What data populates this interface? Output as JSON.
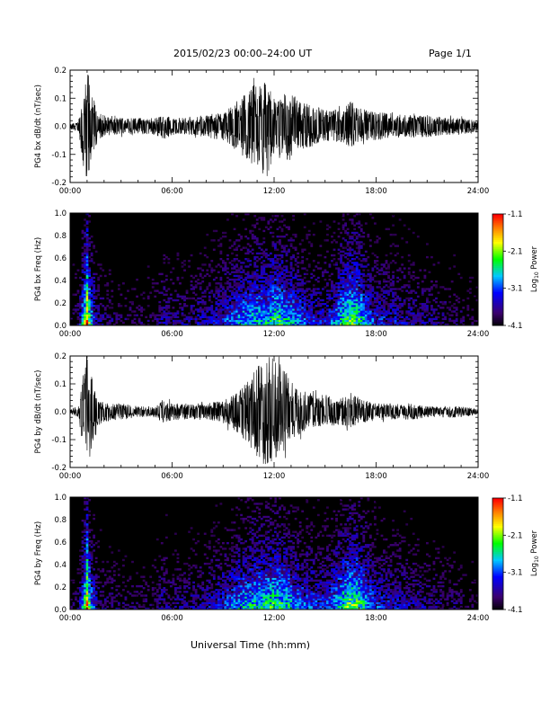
{
  "header": {
    "title": "2015/02/23  00:00–24:00 UT",
    "page": "Page 1/1"
  },
  "x_axis_title": "Universal Time (hh:mm)",
  "chart_data": [
    {
      "type": "line",
      "ylabel": "PG4 bx dB/dt (nT/sec)",
      "xlim": [
        0,
        24
      ],
      "ylim": [
        -0.2,
        0.2
      ],
      "x_tick_labels": [
        "00:00",
        "06:00",
        "12:00",
        "18:00",
        "24:00"
      ],
      "y_tick_labels": [
        "-0.2",
        "-0.1",
        "0.0",
        "0.1",
        "0.2"
      ],
      "y_ticks": [
        -0.2,
        -0.1,
        0.0,
        0.1,
        0.2
      ],
      "envelope": {
        "t": [
          0,
          0.5,
          0.8,
          1.0,
          1.1,
          1.3,
          1.6,
          2.0,
          2.5,
          3,
          4,
          5,
          5.5,
          6,
          7,
          8,
          9,
          9.5,
          10,
          10.5,
          11,
          11.5,
          12,
          12.5,
          13,
          13.5,
          14,
          15,
          16,
          16.5,
          17,
          17.5,
          18,
          19,
          20,
          21,
          22,
          23,
          24
        ],
        "upper": [
          0.01,
          0.02,
          0.12,
          0.19,
          0.2,
          0.12,
          0.05,
          0.04,
          0.03,
          0.03,
          0.03,
          0.03,
          0.04,
          0.03,
          0.03,
          0.04,
          0.05,
          0.07,
          0.09,
          0.14,
          0.15,
          0.16,
          0.1,
          0.12,
          0.12,
          0.09,
          0.08,
          0.06,
          0.06,
          0.09,
          0.07,
          0.06,
          0.05,
          0.05,
          0.04,
          0.04,
          0.03,
          0.03,
          0.02
        ],
        "lower": [
          -0.01,
          -0.02,
          -0.15,
          -0.2,
          -0.2,
          -0.1,
          -0.05,
          -0.04,
          -0.03,
          -0.03,
          -0.03,
          -0.03,
          -0.05,
          -0.03,
          -0.03,
          -0.04,
          -0.05,
          -0.07,
          -0.1,
          -0.12,
          -0.16,
          -0.2,
          -0.1,
          -0.12,
          -0.12,
          -0.08,
          -0.08,
          -0.05,
          -0.06,
          -0.08,
          -0.06,
          -0.05,
          -0.05,
          -0.04,
          -0.04,
          -0.04,
          -0.03,
          -0.03,
          -0.02
        ]
      }
    },
    {
      "type": "heatmap",
      "ylabel": "PG4 bx Freq (Hz)",
      "xlim": [
        0,
        24
      ],
      "ylim": [
        0,
        1.0
      ],
      "x_tick_labels": [
        "00:00",
        "06:00",
        "12:00",
        "18:00",
        "24:00"
      ],
      "y_tick_labels": [
        "0.0",
        "0.2",
        "0.4",
        "0.6",
        "0.8",
        "1.0"
      ],
      "y_ticks": [
        0,
        0.2,
        0.4,
        0.6,
        0.8,
        1.0
      ],
      "colorbar": {
        "label": "Log10 Power",
        "label_prefix": "Log",
        "label_sub": "10",
        "label_suffix": " Power",
        "range": [
          -4.1,
          -1.1
        ],
        "tick_labels": [
          "-1.1",
          "-2.1",
          "-3.1",
          "-4.1"
        ],
        "ticks": [
          -1.1,
          -2.1,
          -3.1,
          -4.1
        ]
      },
      "activity": {
        "t": [
          0,
          0.5,
          0.9,
          1.0,
          1.2,
          1.6,
          2.0,
          3,
          4,
          5,
          5.5,
          6,
          7,
          8,
          9,
          10,
          10.5,
          11,
          11.5,
          12,
          12.5,
          13,
          13.5,
          14,
          15,
          15.5,
          16,
          16.5,
          17,
          17.5,
          18,
          19,
          20,
          21,
          22,
          23,
          24
        ],
        "level": [
          0.1,
          0.2,
          0.8,
          1.0,
          0.6,
          0.25,
          0.2,
          0.15,
          0.15,
          0.15,
          0.3,
          0.2,
          0.25,
          0.3,
          0.4,
          0.55,
          0.6,
          0.6,
          0.6,
          0.7,
          0.65,
          0.6,
          0.5,
          0.4,
          0.35,
          0.45,
          0.65,
          0.75,
          0.7,
          0.5,
          0.4,
          0.35,
          0.3,
          0.25,
          0.2,
          0.15,
          0.1
        ]
      }
    },
    {
      "type": "line",
      "ylabel": "PG4 by dB/dt (nT/sec)",
      "xlim": [
        0,
        24
      ],
      "ylim": [
        -0.2,
        0.2
      ],
      "x_tick_labels": [
        "00:00",
        "06:00",
        "12:00",
        "18:00",
        "24:00"
      ],
      "y_tick_labels": [
        "-0.2",
        "-0.1",
        "0.0",
        "0.1",
        "0.2"
      ],
      "y_ticks": [
        -0.2,
        -0.1,
        0.0,
        0.1,
        0.2
      ],
      "envelope": {
        "t": [
          0,
          0.5,
          0.8,
          1.0,
          1.1,
          1.3,
          1.6,
          2.0,
          2.5,
          3,
          4,
          5,
          5.5,
          6,
          7,
          8,
          9,
          9.5,
          10,
          10.5,
          11,
          11.5,
          12,
          12.5,
          13,
          13.5,
          14,
          15,
          16,
          16.5,
          17,
          17.5,
          18,
          19,
          20,
          21,
          22,
          23,
          24
        ],
        "upper": [
          0.01,
          0.02,
          0.15,
          0.19,
          0.2,
          0.12,
          0.04,
          0.03,
          0.03,
          0.03,
          0.02,
          0.02,
          0.05,
          0.03,
          0.03,
          0.03,
          0.04,
          0.06,
          0.08,
          0.12,
          0.16,
          0.2,
          0.2,
          0.16,
          0.12,
          0.08,
          0.07,
          0.06,
          0.05,
          0.07,
          0.05,
          0.04,
          0.03,
          0.03,
          0.03,
          0.02,
          0.02,
          0.02,
          0.01
        ],
        "lower": [
          -0.01,
          -0.02,
          -0.15,
          -0.2,
          -0.2,
          -0.12,
          -0.05,
          -0.04,
          -0.03,
          -0.03,
          -0.02,
          -0.02,
          -0.04,
          -0.03,
          -0.03,
          -0.03,
          -0.04,
          -0.06,
          -0.08,
          -0.12,
          -0.16,
          -0.2,
          -0.18,
          -0.15,
          -0.1,
          -0.08,
          -0.06,
          -0.05,
          -0.05,
          -0.06,
          -0.04,
          -0.04,
          -0.03,
          -0.03,
          -0.03,
          -0.02,
          -0.02,
          -0.02,
          -0.01
        ]
      }
    },
    {
      "type": "heatmap",
      "ylabel": "PG4 by Freq (Hz)",
      "xlim": [
        0,
        24
      ],
      "ylim": [
        0,
        1.0
      ],
      "x_tick_labels": [
        "00:00",
        "06:00",
        "12:00",
        "18:00",
        "24:00"
      ],
      "y_tick_labels": [
        "0.0",
        "0.2",
        "0.4",
        "0.6",
        "0.8",
        "1.0"
      ],
      "y_ticks": [
        0,
        0.2,
        0.4,
        0.6,
        0.8,
        1.0
      ],
      "colorbar": {
        "label": "Log10 Power",
        "label_prefix": "Log",
        "label_sub": "10",
        "label_suffix": " Power",
        "range": [
          -4.1,
          -1.1
        ],
        "tick_labels": [
          "-1.1",
          "-2.1",
          "-3.1",
          "-4.1"
        ],
        "ticks": [
          -1.1,
          -2.1,
          -3.1,
          -4.1
        ]
      },
      "activity": {
        "t": [
          0,
          0.5,
          0.9,
          1.0,
          1.2,
          1.6,
          2.0,
          3,
          4,
          5,
          5.5,
          6,
          7,
          8,
          9,
          10,
          10.5,
          11,
          11.5,
          12,
          12.5,
          13,
          13.5,
          14,
          15,
          15.5,
          16,
          16.5,
          17,
          17.5,
          18,
          19,
          20,
          21,
          22,
          23,
          24
        ],
        "level": [
          0.1,
          0.2,
          0.8,
          1.0,
          0.6,
          0.25,
          0.2,
          0.15,
          0.15,
          0.15,
          0.3,
          0.2,
          0.25,
          0.3,
          0.4,
          0.55,
          0.6,
          0.65,
          0.65,
          0.7,
          0.65,
          0.6,
          0.5,
          0.45,
          0.4,
          0.5,
          0.65,
          0.75,
          0.7,
          0.55,
          0.4,
          0.35,
          0.3,
          0.25,
          0.2,
          0.15,
          0.1
        ]
      }
    }
  ]
}
